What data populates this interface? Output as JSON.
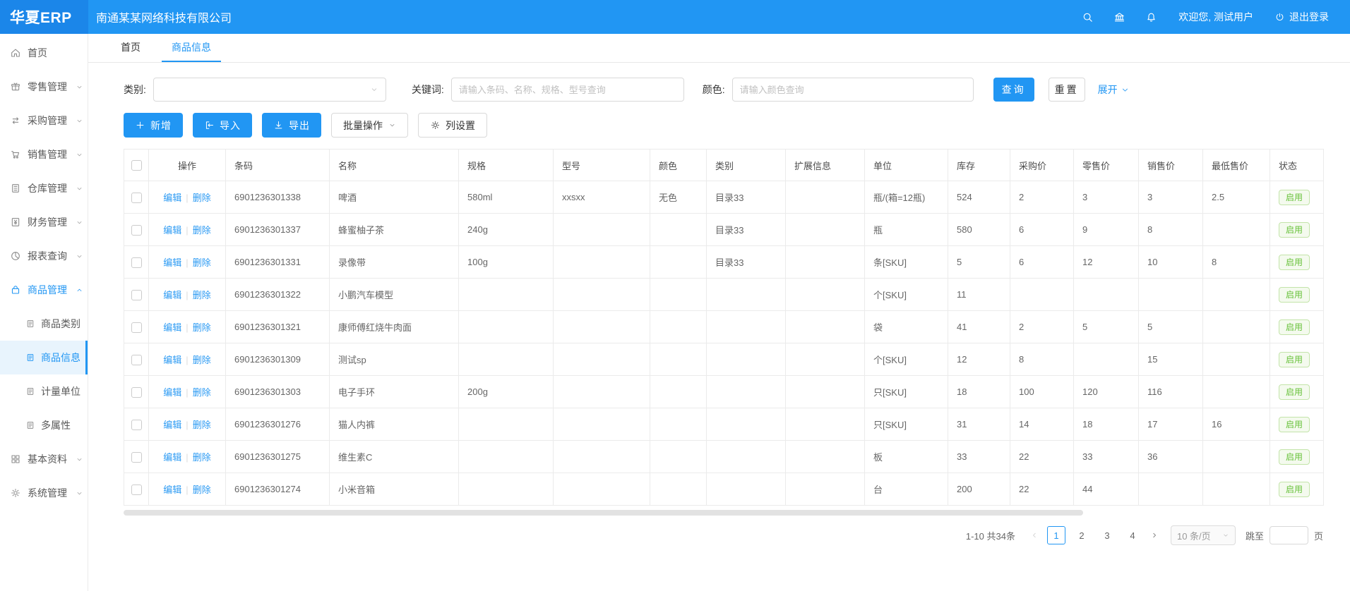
{
  "colors": {
    "primary": "#2196f3",
    "logo_bg": "#1b86e9",
    "link": "#2b9af3",
    "status_green": "#67c23a",
    "active_item_bg": "#e8f4fd"
  },
  "topbar": {
    "logo": "华夏ERP",
    "company": "南通某某网络科技有限公司",
    "icons": [
      "search-icon",
      "bank-icon",
      "bell-icon"
    ],
    "welcome": "欢迎您, 测试用户",
    "logout_label": "退出登录"
  },
  "sidebar": {
    "items": [
      {
        "label": "首页",
        "icon": "home",
        "expandable": false
      },
      {
        "label": "零售管理",
        "icon": "retail",
        "expandable": true
      },
      {
        "label": "采购管理",
        "icon": "purchase",
        "expandable": true
      },
      {
        "label": "销售管理",
        "icon": "sales",
        "expandable": true
      },
      {
        "label": "仓库管理",
        "icon": "warehouse",
        "expandable": true
      },
      {
        "label": "财务管理",
        "icon": "finance",
        "expandable": true
      },
      {
        "label": "报表查询",
        "icon": "report",
        "expandable": true
      },
      {
        "label": "商品管理",
        "icon": "product",
        "expandable": true,
        "expanded": true,
        "active": true,
        "children": [
          {
            "label": "商品类别",
            "icon": "doc",
            "current": false
          },
          {
            "label": "商品信息",
            "icon": "doc",
            "current": true
          },
          {
            "label": "计量单位",
            "icon": "doc",
            "current": false
          },
          {
            "label": "多属性",
            "icon": "doc",
            "current": false
          }
        ]
      },
      {
        "label": "基本资料",
        "icon": "grid",
        "expandable": true
      },
      {
        "label": "系统管理",
        "icon": "gear",
        "expandable": true
      }
    ]
  },
  "tabs": [
    {
      "label": "首页",
      "active": false
    },
    {
      "label": "商品信息",
      "active": true
    }
  ],
  "filters": {
    "category_label": "类别:",
    "category_value": "",
    "keyword_label": "关键词:",
    "keyword_placeholder": "请输入条码、名称、规格、型号查询",
    "color_label": "颜色:",
    "color_placeholder": "请输入颜色查询",
    "search_button": "查询",
    "reset_button": "重置",
    "expand_link": "展开"
  },
  "toolbar": {
    "add_button": "新增",
    "import_button": "导入",
    "export_button": "导出",
    "batch_button": "批量操作",
    "column_settings_button": "列设置"
  },
  "table": {
    "headers": [
      "操作",
      "条码",
      "名称",
      "规格",
      "型号",
      "颜色",
      "类别",
      "扩展信息",
      "单位",
      "库存",
      "采购价",
      "零售价",
      "销售价",
      "最低售价",
      "状态"
    ],
    "edit_label": "编辑",
    "delete_label": "删除",
    "rows": [
      {
        "barcode": "6901236301338",
        "name": "啤酒",
        "spec": "580ml",
        "model": "xxsxx",
        "color": "无色",
        "category": "目录33",
        "ext": "",
        "unit": "瓶/(箱=12瓶)",
        "stock": "524",
        "purchase_price": "2",
        "retail_price": "3",
        "sale_price": "3",
        "lowest_price": "2.5",
        "status": "启用"
      },
      {
        "barcode": "6901236301337",
        "name": "蜂蜜柚子茶",
        "spec": "240g",
        "model": "",
        "color": "",
        "category": "目录33",
        "ext": "",
        "unit": "瓶",
        "stock": "580",
        "purchase_price": "6",
        "retail_price": "9",
        "sale_price": "8",
        "lowest_price": "",
        "status": "启用"
      },
      {
        "barcode": "6901236301331",
        "name": "录像带",
        "spec": "100g",
        "model": "",
        "color": "",
        "category": "目录33",
        "ext": "",
        "unit": "条[SKU]",
        "stock": "5",
        "purchase_price": "6",
        "retail_price": "12",
        "sale_price": "10",
        "lowest_price": "8",
        "status": "启用"
      },
      {
        "barcode": "6901236301322",
        "name": "小鹏汽车模型",
        "spec": "",
        "model": "",
        "color": "",
        "category": "",
        "ext": "",
        "unit": "个[SKU]",
        "stock": "11",
        "purchase_price": "",
        "retail_price": "",
        "sale_price": "",
        "lowest_price": "",
        "status": "启用"
      },
      {
        "barcode": "6901236301321",
        "name": "康师傅红烧牛肉面",
        "spec": "",
        "model": "",
        "color": "",
        "category": "",
        "ext": "",
        "unit": "袋",
        "stock": "41",
        "purchase_price": "2",
        "retail_price": "5",
        "sale_price": "5",
        "lowest_price": "",
        "status": "启用"
      },
      {
        "barcode": "6901236301309",
        "name": "测试sp",
        "spec": "",
        "model": "",
        "color": "",
        "category": "",
        "ext": "",
        "unit": "个[SKU]",
        "stock": "12",
        "purchase_price": "8",
        "retail_price": "",
        "sale_price": "15",
        "lowest_price": "",
        "status": "启用"
      },
      {
        "barcode": "6901236301303",
        "name": "电子手环",
        "spec": "200g",
        "model": "",
        "color": "",
        "category": "",
        "ext": "",
        "unit": "只[SKU]",
        "stock": "18",
        "purchase_price": "100",
        "retail_price": "120",
        "sale_price": "116",
        "lowest_price": "",
        "status": "启用"
      },
      {
        "barcode": "6901236301276",
        "name": "猫人内裤",
        "spec": "",
        "model": "",
        "color": "",
        "category": "",
        "ext": "",
        "unit": "只[SKU]",
        "stock": "31",
        "purchase_price": "14",
        "retail_price": "18",
        "sale_price": "17",
        "lowest_price": "16",
        "status": "启用"
      },
      {
        "barcode": "6901236301275",
        "name": "维生素C",
        "spec": "",
        "model": "",
        "color": "",
        "category": "",
        "ext": "",
        "unit": "板",
        "stock": "33",
        "purchase_price": "22",
        "retail_price": "33",
        "sale_price": "36",
        "lowest_price": "",
        "status": "启用"
      },
      {
        "barcode": "6901236301274",
        "name": "小米音箱",
        "spec": "",
        "model": "",
        "color": "",
        "category": "",
        "ext": "",
        "unit": "台",
        "stock": "200",
        "purchase_price": "22",
        "retail_price": "44",
        "sale_price": "",
        "lowest_price": "",
        "status": "启用"
      }
    ]
  },
  "pagination": {
    "total_text": "1-10 共34条",
    "pages": [
      "1",
      "2",
      "3",
      "4"
    ],
    "current_page": "1",
    "page_size": "10 条/页",
    "jump_label": "跳至",
    "jump_value": "",
    "page_suffix": "页"
  }
}
